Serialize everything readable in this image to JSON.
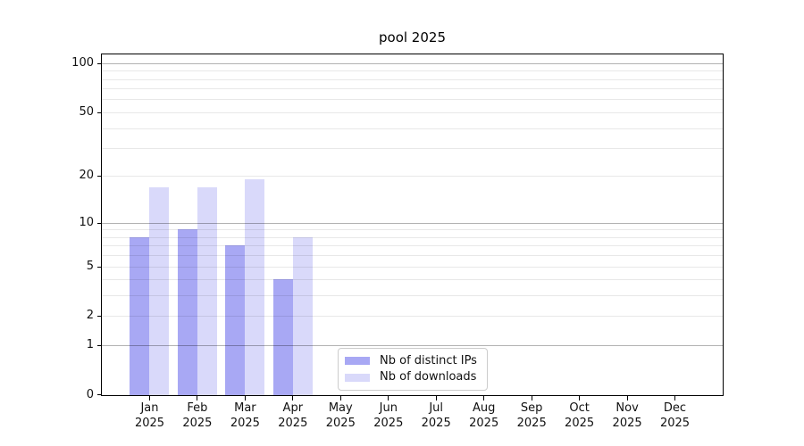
{
  "chart_data": {
    "type": "bar",
    "title": "pool 2025",
    "x_categories": [
      {
        "month": "Jan",
        "year": "2025"
      },
      {
        "month": "Feb",
        "year": "2025"
      },
      {
        "month": "Mar",
        "year": "2025"
      },
      {
        "month": "Apr",
        "year": "2025"
      },
      {
        "month": "May",
        "year": "2025"
      },
      {
        "month": "Jun",
        "year": "2025"
      },
      {
        "month": "Jul",
        "year": "2025"
      },
      {
        "month": "Aug",
        "year": "2025"
      },
      {
        "month": "Sep",
        "year": "2025"
      },
      {
        "month": "Oct",
        "year": "2025"
      },
      {
        "month": "Nov",
        "year": "2025"
      },
      {
        "month": "Dec",
        "year": "2025"
      }
    ],
    "series": [
      {
        "name": "Nb of distinct IPs",
        "color": "#a8a8f4",
        "values": [
          8,
          9,
          7,
          4,
          null,
          null,
          null,
          null,
          null,
          null,
          null,
          null
        ]
      },
      {
        "name": "Nb of downloads",
        "color": "#d9d9fa",
        "values": [
          17,
          17,
          19,
          8,
          null,
          null,
          null,
          null,
          null,
          null,
          null,
          null
        ]
      }
    ],
    "y_axis": {
      "scale": "log10(1+value)",
      "min": 0,
      "max": 113,
      "tick_values": [
        0,
        1,
        2,
        5,
        10,
        20,
        50,
        100
      ],
      "major_grid_values": [
        1,
        10,
        100
      ],
      "minor_grid_values": [
        2,
        3,
        4,
        5,
        6,
        7,
        8,
        9,
        20,
        30,
        40,
        50,
        60,
        70,
        80,
        90
      ]
    },
    "legend": {
      "position": "lower-center-inside"
    },
    "styles": {
      "grid_major": "rgba(0,0,0,0.30)",
      "grid_minor": "rgba(0,0,0,0.09)",
      "spine": "#000000",
      "text": "#111111",
      "legend_border": "#cccccc",
      "background": "#ffffff"
    }
  }
}
